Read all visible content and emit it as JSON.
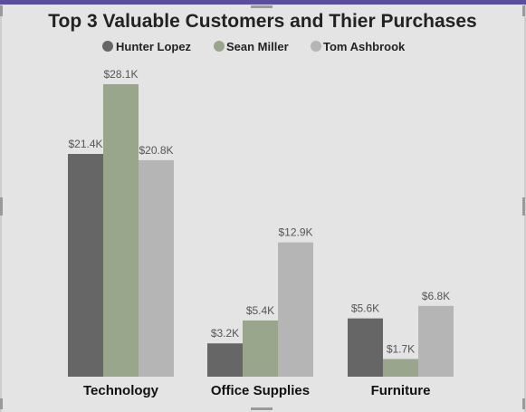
{
  "chart_data": {
    "type": "bar",
    "title": "Top 3 Valuable Customers and Thier Purchases",
    "categories": [
      "Technology",
      "Office Supplies",
      "Furniture"
    ],
    "series": [
      {
        "name": "Hunter Lopez",
        "color": "#666666",
        "values": [
          21.4,
          3.2,
          5.6
        ],
        "labels": [
          "$21.4K",
          "$3.2K",
          "$5.6K"
        ]
      },
      {
        "name": "Sean Miller",
        "color": "#9aa68c",
        "values": [
          28.1,
          5.4,
          1.7
        ],
        "labels": [
          "$28.1K",
          "$5.4K",
          "$1.7K"
        ]
      },
      {
        "name": "Tom Ashbrook",
        "color": "#b5b5b5",
        "values": [
          20.8,
          12.9,
          6.8
        ],
        "labels": [
          "$20.8K",
          "$12.9K",
          "$6.8K"
        ]
      }
    ],
    "ylim": [
      0,
      28.1
    ],
    "legend": "top-center",
    "grid": false
  }
}
